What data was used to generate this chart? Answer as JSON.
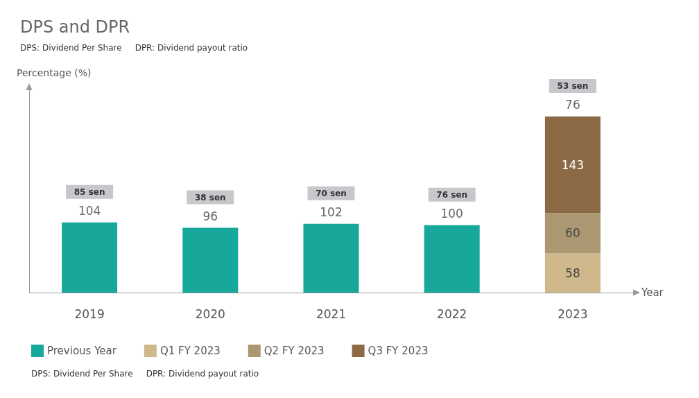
{
  "chart_data": {
    "type": "bar",
    "title": "DPS and DPR",
    "subtitle": "DPS: Dividend Per Share     DPR: Dividend payout ratio",
    "xlabel": "Year",
    "ylabel": "Percentage (%)",
    "categories": [
      "2019",
      "2020",
      "2021",
      "2022",
      "2023"
    ],
    "series": [
      {
        "name": "Previous Year",
        "color": "#17a89b",
        "values": [
          104,
          96,
          102,
          100,
          null
        ]
      },
      {
        "name": "Q1 FY 2023",
        "color": "#cfb98c",
        "values": [
          null,
          null,
          null,
          null,
          58
        ]
      },
      {
        "name": "Q2 FY 2023",
        "color": "#ab9772",
        "values": [
          null,
          null,
          null,
          null,
          60
        ]
      },
      {
        "name": "Q3 FY 2023",
        "color": "#8b6a45",
        "values": [
          null,
          null,
          null,
          null,
          143
        ]
      }
    ],
    "stacked": true,
    "data_labels": true,
    "ylim": [
      0,
      300
    ],
    "tick_labels": "x",
    "grid": false,
    "legend": "bottom left",
    "annotations": [
      "85 sen",
      "38 sen",
      "70 sen",
      "76 sen",
      "53 sen",
      {
        "text": "76",
        "x": "2023",
        "y": 261
      },
      "DPS: Dividend Per Share     DPR: Dividend payout ratio"
    ]
  }
}
